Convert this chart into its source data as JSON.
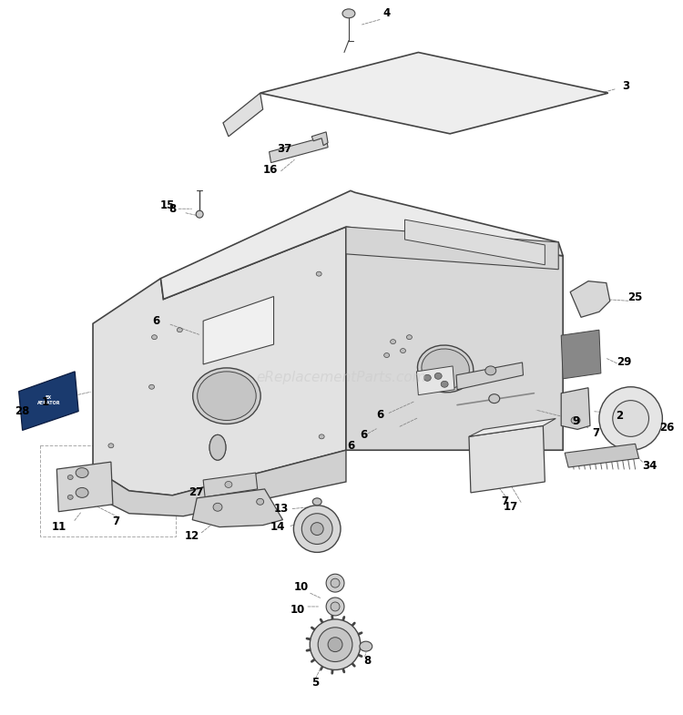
{
  "bg_color": "#ffffff",
  "line_color": "#444444",
  "watermark": "eReplacementParts.com",
  "watermark_color": "#cccccc",
  "fig_width": 7.5,
  "fig_height": 7.85,
  "dpi": 100
}
